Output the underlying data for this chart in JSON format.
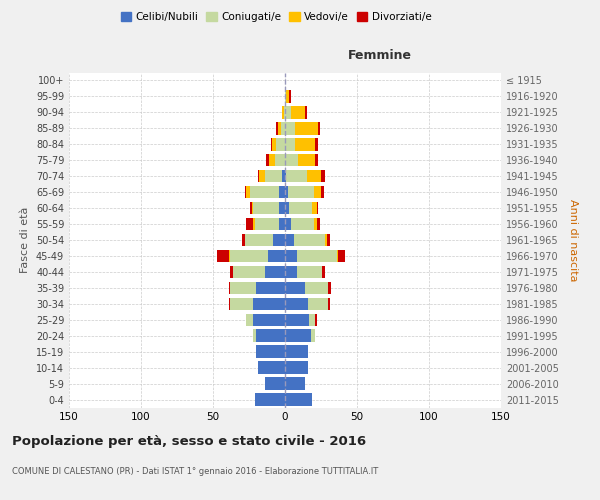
{
  "age_groups": [
    "0-4",
    "5-9",
    "10-14",
    "15-19",
    "20-24",
    "25-29",
    "30-34",
    "35-39",
    "40-44",
    "45-49",
    "50-54",
    "55-59",
    "60-64",
    "65-69",
    "70-74",
    "75-79",
    "80-84",
    "85-89",
    "90-94",
    "95-99",
    "100+"
  ],
  "birth_years": [
    "2011-2015",
    "2006-2010",
    "2001-2005",
    "1996-2000",
    "1991-1995",
    "1986-1990",
    "1981-1985",
    "1976-1980",
    "1971-1975",
    "1966-1970",
    "1961-1965",
    "1956-1960",
    "1951-1955",
    "1946-1950",
    "1941-1945",
    "1936-1940",
    "1931-1935",
    "1926-1930",
    "1921-1925",
    "1916-1920",
    "≤ 1915"
  ],
  "males": {
    "celibi": [
      21,
      14,
      19,
      20,
      20,
      22,
      22,
      20,
      14,
      12,
      8,
      4,
      4,
      4,
      2,
      0,
      0,
      0,
      0,
      0,
      0
    ],
    "coniugati": [
      0,
      0,
      0,
      0,
      2,
      5,
      16,
      18,
      22,
      26,
      20,
      17,
      18,
      20,
      12,
      7,
      6,
      3,
      1,
      0,
      0
    ],
    "vedovi": [
      0,
      0,
      0,
      0,
      0,
      0,
      0,
      0,
      0,
      1,
      0,
      1,
      1,
      3,
      4,
      4,
      3,
      2,
      1,
      0,
      0
    ],
    "divorziati": [
      0,
      0,
      0,
      0,
      0,
      0,
      1,
      1,
      2,
      8,
      2,
      5,
      1,
      1,
      1,
      2,
      1,
      1,
      0,
      0,
      0
    ]
  },
  "females": {
    "nubili": [
      19,
      14,
      16,
      16,
      18,
      17,
      16,
      14,
      8,
      8,
      6,
      4,
      3,
      2,
      1,
      0,
      0,
      0,
      0,
      0,
      0
    ],
    "coniugate": [
      0,
      0,
      0,
      0,
      3,
      4,
      14,
      16,
      18,
      28,
      22,
      16,
      16,
      18,
      14,
      9,
      7,
      7,
      4,
      1,
      0
    ],
    "vedove": [
      0,
      0,
      0,
      0,
      0,
      0,
      0,
      0,
      0,
      1,
      1,
      2,
      3,
      5,
      10,
      12,
      14,
      16,
      10,
      2,
      0
    ],
    "divorziate": [
      0,
      0,
      0,
      0,
      0,
      1,
      1,
      2,
      2,
      5,
      2,
      2,
      1,
      2,
      3,
      2,
      2,
      1,
      1,
      1,
      0
    ]
  },
  "colors": {
    "celibi": "#4472C4",
    "coniugati": "#c5d9a0",
    "vedovi": "#ffc000",
    "divorziati": "#cc0000"
  },
  "title": "Popolazione per età, sesso e stato civile - 2016",
  "subtitle": "COMUNE DI CALESTANO (PR) - Dati ISTAT 1° gennaio 2016 - Elaborazione TUTTITALIA.IT",
  "xlabel_right": "Femmine",
  "ylabel_left": "Fasce di età",
  "ylabel_right": "Anni di nascita",
  "xlim": 150,
  "bg_color": "#f0f0f0",
  "plot_bg": "#ffffff",
  "grid_color": "#cccccc"
}
